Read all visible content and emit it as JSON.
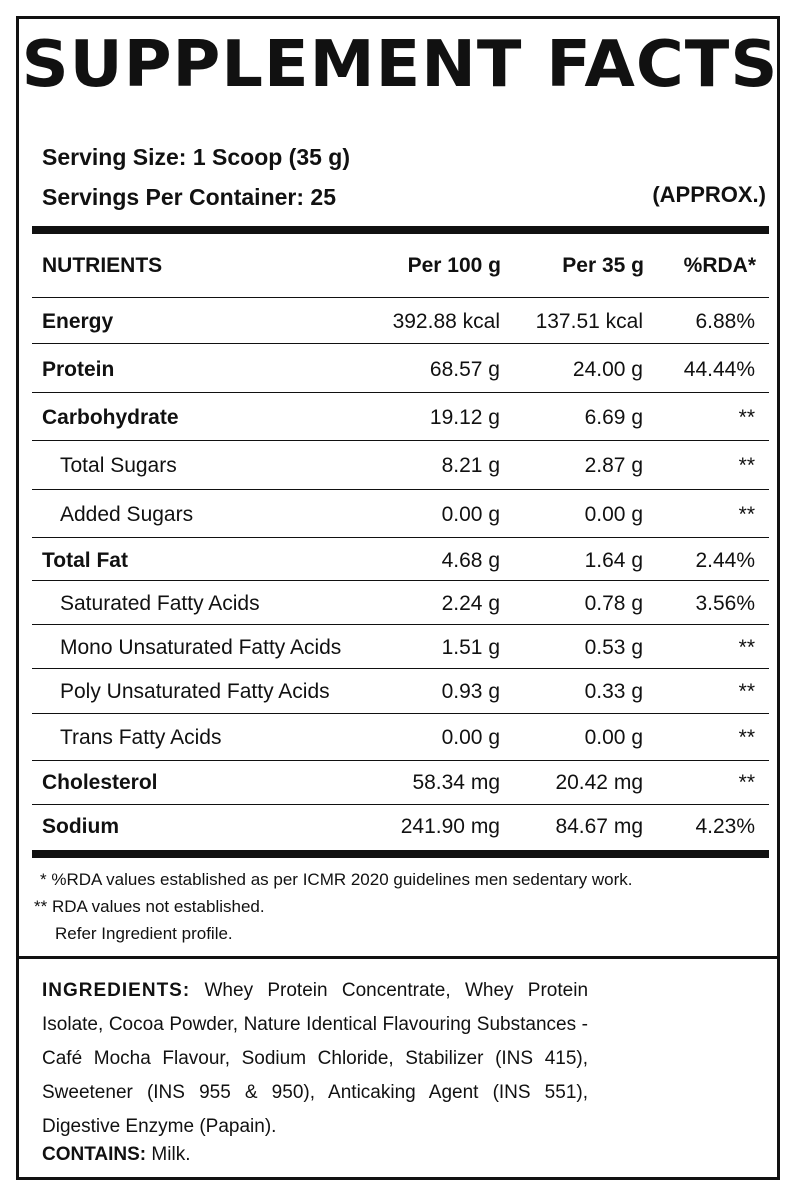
{
  "title": "SUPPLEMENT FACTS",
  "serving_size": "Serving Size: 1 Scoop (35 g)",
  "servings_per_container": "Servings Per Container: 25",
  "approx": "(APPROX.)",
  "headers": {
    "nutrients": "NUTRIENTS",
    "per100": "Per 100 g",
    "per35": "Per 35 g",
    "rda": "%RDA*"
  },
  "rows": [
    {
      "name": "Energy",
      "per100": "392.88 kcal",
      "per35": "137.51 kcal",
      "rda": "6.88%"
    },
    {
      "name": "Protein",
      "per100": "68.57 g",
      "per35": "24.00 g",
      "rda": "44.44%"
    },
    {
      "name": "Carbohydrate",
      "per100": "19.12 g",
      "per35": "6.69 g",
      "rda": "**"
    },
    {
      "name": "Total Sugars",
      "per100": "8.21 g",
      "per35": "2.87 g",
      "rda": "**"
    },
    {
      "name": "Added Sugars",
      "per100": "0.00 g",
      "per35": "0.00 g",
      "rda": "**"
    },
    {
      "name": "Total Fat",
      "per100": "4.68 g",
      "per35": "1.64 g",
      "rda": "2.44%"
    },
    {
      "name": "Saturated Fatty Acids",
      "per100": "2.24 g",
      "per35": "0.78 g",
      "rda": "3.56%"
    },
    {
      "name": "Mono Unsaturated Fatty Acids",
      "per100": "1.51 g",
      "per35": "0.53 g",
      "rda": "**"
    },
    {
      "name": "Poly Unsaturated Fatty Acids",
      "per100": "0.93 g",
      "per35": "0.33 g",
      "rda": "**"
    },
    {
      "name": "Trans Fatty Acids",
      "per100": "0.00 g",
      "per35": "0.00 g",
      "rda": "**"
    },
    {
      "name": "Cholesterol",
      "per100": "58.34 mg",
      "per35": "20.42 mg",
      "rda": "**"
    },
    {
      "name": "Sodium",
      "per100": "241.90 mg",
      "per35": "84.67 mg",
      "rda": "4.23%"
    }
  ],
  "notes": {
    "line1": "* %RDA values established as per ICMR 2020 guidelines men sedentary work.",
    "line2": "** RDA values not established.",
    "line3": "Refer Ingredient profile."
  },
  "ingredients_label": "INGREDIENTS:",
  "ingredients_text": "Whey Protein Concentrate, Whey Protein Isolate, Cocoa Powder, Nature Identical Flavouring Substances - Café Mocha Flavour, Sodium Chloride, Stabilizer (INS 415), Sweetener (INS 955 & 950), Anticaking Agent (INS 551), Digestive Enzyme (Papain).",
  "contains_label": "CONTAINS:",
  "contains_text": "Milk."
}
